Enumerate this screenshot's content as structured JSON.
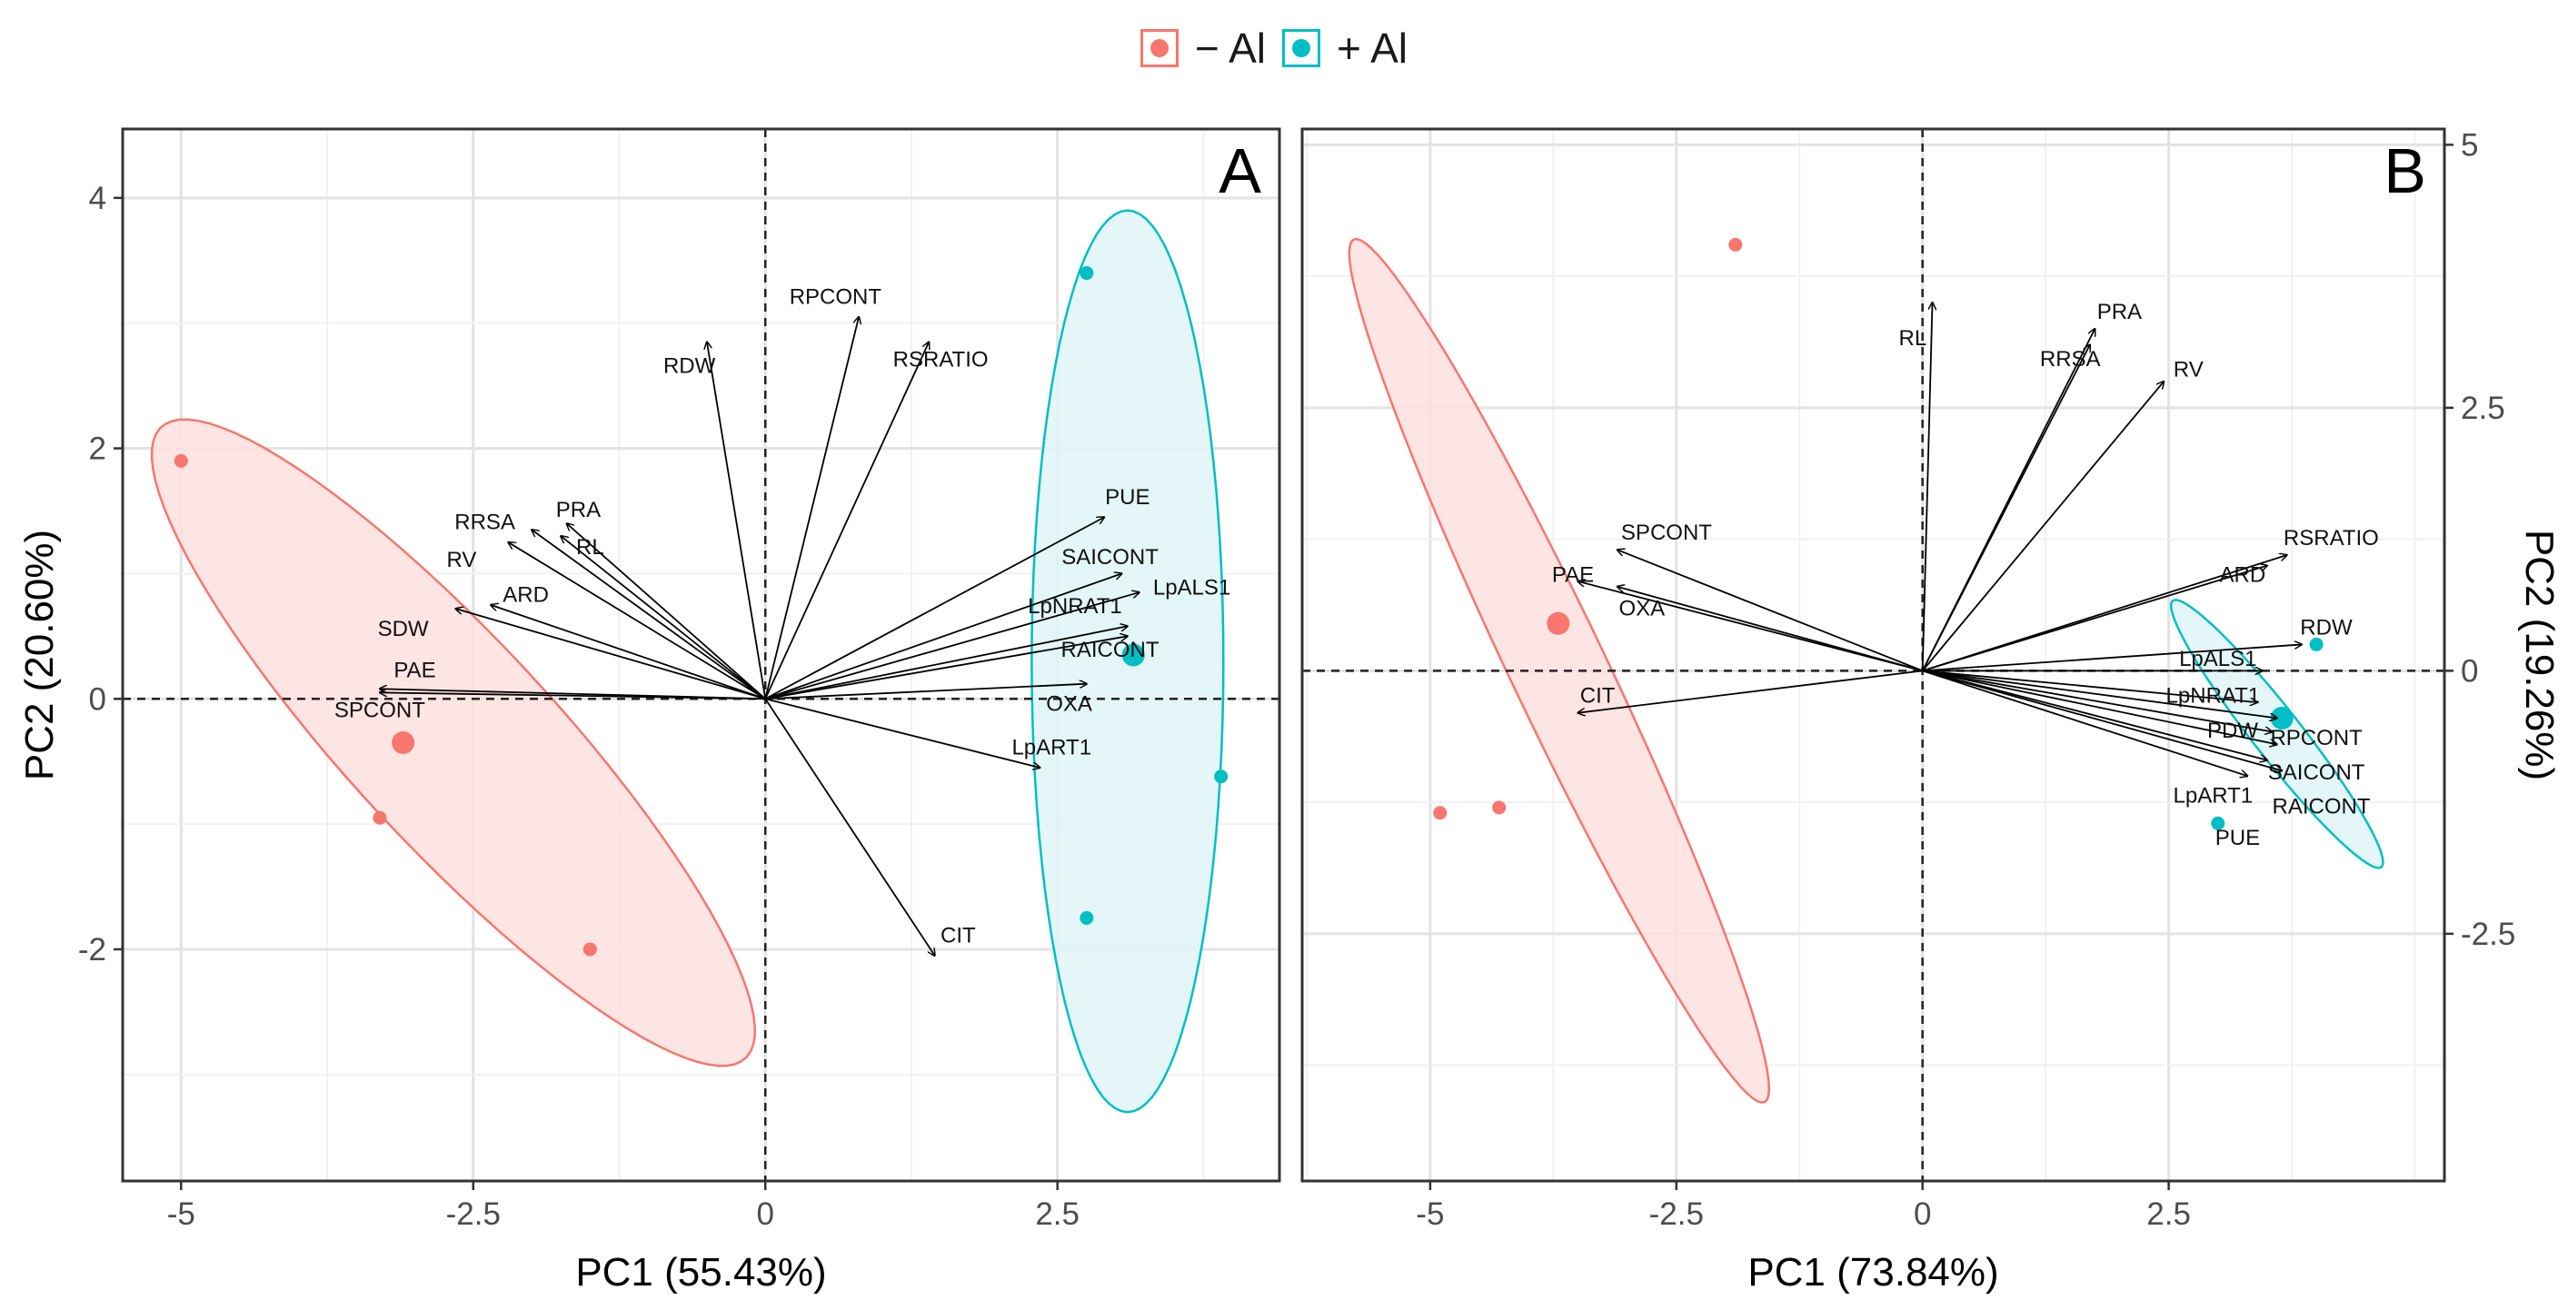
{
  "legend": {
    "items": [
      {
        "label": "− Al",
        "color": "#F8766D",
        "fill": "#FBE0DE"
      },
      {
        "label": "+ Al",
        "color": "#00BFC4",
        "fill": "#DFF5F6"
      }
    ]
  },
  "chart_data": [
    {
      "type": "scatter",
      "subtype": "pca-biplot",
      "panel_label": "A",
      "xlabel": "PC1 (55.43%)",
      "ylabel": "PC2 (20.60%)",
      "ylabel_side": "left",
      "xlim": [
        -5.5,
        4.4
      ],
      "ylim": [
        -3.85,
        4.55
      ],
      "xticks": [
        -5,
        -2.5,
        0,
        2.5
      ],
      "xtick_labels": [
        "-5",
        "-2.5",
        "0",
        "2.5"
      ],
      "yticks": [
        -2,
        0,
        2,
        4
      ],
      "ytick_labels": [
        "-2",
        "0",
        "2",
        "4"
      ],
      "groups": [
        {
          "name": "− Al",
          "points": [
            [
              -5.0,
              1.9
            ],
            [
              -3.3,
              -0.95
            ],
            [
              -1.5,
              -2.0
            ]
          ],
          "centroid": [
            -3.1,
            -0.35
          ],
          "ellipse": {
            "cx": -2.67,
            "cy": -0.35,
            "rx": 3.55,
            "ry": 0.85,
            "angle_deg": -45
          }
        },
        {
          "name": "+ Al",
          "points": [
            [
              2.75,
              3.4
            ],
            [
              3.9,
              -0.62
            ],
            [
              2.75,
              -1.75
            ]
          ],
          "centroid": [
            3.15,
            0.35
          ],
          "ellipse": {
            "cx": 3.1,
            "cy": 0.3,
            "rx": 0.82,
            "ry": 3.6,
            "angle_deg": 0
          }
        }
      ],
      "vectors": [
        {
          "name": "RDW",
          "end": [
            -0.5,
            2.85
          ],
          "label": [
            -0.65,
            2.65
          ]
        },
        {
          "name": "RPCONT",
          "end": [
            0.8,
            3.05
          ],
          "label": [
            0.6,
            3.2
          ]
        },
        {
          "name": "RSRATIO",
          "end": [
            1.4,
            2.85
          ],
          "label": [
            1.5,
            2.7
          ]
        },
        {
          "name": "PRA",
          "end": [
            -1.7,
            1.4
          ],
          "label": [
            -1.6,
            1.5
          ]
        },
        {
          "name": "RRSA",
          "end": [
            -2.0,
            1.35
          ],
          "label": [
            -2.4,
            1.4
          ]
        },
        {
          "name": "RL",
          "end": [
            -1.75,
            1.3
          ],
          "label": [
            -1.5,
            1.2
          ]
        },
        {
          "name": "RV",
          "end": [
            -2.2,
            1.25
          ],
          "label": [
            -2.6,
            1.1
          ]
        },
        {
          "name": "ARD",
          "end": [
            -2.35,
            0.75
          ],
          "label": [
            -2.05,
            0.82
          ]
        },
        {
          "name": "SDW",
          "end": [
            -2.65,
            0.72
          ],
          "label": [
            -3.1,
            0.55
          ]
        },
        {
          "name": "PAE",
          "end": [
            -3.3,
            0.08
          ],
          "label": [
            -3.0,
            0.22
          ]
        },
        {
          "name": "SPCONT",
          "end": [
            -3.3,
            0.05
          ],
          "label": [
            -3.3,
            -0.1
          ]
        },
        {
          "name": "PUE",
          "end": [
            2.9,
            1.45
          ],
          "label": [
            3.1,
            1.6
          ]
        },
        {
          "name": "SAICONT",
          "end": [
            3.05,
            1.0
          ],
          "label": [
            2.95,
            1.12
          ]
        },
        {
          "name": "LpALS1",
          "end": [
            3.2,
            0.85
          ],
          "label": [
            3.65,
            0.88
          ]
        },
        {
          "name": "LpNRAT1",
          "end": [
            3.1,
            0.58
          ],
          "label": [
            2.65,
            0.73
          ]
        },
        {
          "name": "RAICONT",
          "end": [
            3.1,
            0.5
          ],
          "label": [
            2.95,
            0.38
          ]
        },
        {
          "name": "OXA",
          "end": [
            2.75,
            0.12
          ],
          "label": [
            2.6,
            -0.05
          ]
        },
        {
          "name": "LpART1",
          "end": [
            2.35,
            -0.55
          ],
          "label": [
            2.45,
            -0.4
          ]
        },
        {
          "name": "CIT",
          "end": [
            1.45,
            -2.05
          ],
          "label": [
            1.65,
            -1.9
          ]
        }
      ]
    },
    {
      "type": "scatter",
      "subtype": "pca-biplot",
      "panel_label": "B",
      "xlabel": "PC1 (73.84%)",
      "ylabel": "PC2 (19.26%)",
      "ylabel_side": "right",
      "xlim": [
        -6.3,
        5.3
      ],
      "ylim": [
        -4.85,
        5.15
      ],
      "xticks": [
        -5,
        -2.5,
        0,
        2.5
      ],
      "xtick_labels": [
        "-5",
        "-2.5",
        "0",
        "2.5"
      ],
      "yticks": [
        -2.5,
        0,
        2.5,
        5
      ],
      "ytick_labels": [
        "-2.5",
        "0",
        "2.5",
        "5"
      ],
      "groups": [
        {
          "name": "− Al",
          "points": [
            [
              -1.9,
              4.05
            ],
            [
              -4.9,
              -1.35
            ],
            [
              -4.3,
              -1.3
            ]
          ],
          "centroid": [
            -3.7,
            0.45
          ],
          "ellipse": {
            "cx": -3.69,
            "cy": 0.0,
            "rx": 4.6,
            "ry": 0.48,
            "angle_deg": -63
          }
        },
        {
          "name": "+ Al",
          "points": [
            [
              4.0,
              0.25
            ],
            [
              3.0,
              -1.45
            ]
          ],
          "centroid": [
            3.65,
            -0.45
          ],
          "ellipse": {
            "cx": 3.6,
            "cy": -0.6,
            "rx": 1.65,
            "ry": 0.24,
            "angle_deg": -50
          }
        }
      ],
      "vectors": [
        {
          "name": "RL",
          "end": [
            0.1,
            3.5
          ],
          "label": [
            -0.1,
            3.15
          ]
        },
        {
          "name": "PRA",
          "end": [
            1.75,
            3.25
          ],
          "label": [
            2.0,
            3.4
          ]
        },
        {
          "name": "RRSA",
          "end": [
            1.7,
            3.1
          ],
          "label": [
            1.5,
            2.95
          ]
        },
        {
          "name": "RV",
          "end": [
            2.45,
            2.75
          ],
          "label": [
            2.7,
            2.85
          ]
        },
        {
          "name": "SPCONT",
          "end": [
            -3.1,
            1.15
          ],
          "label": [
            -2.6,
            1.3
          ]
        },
        {
          "name": "PAE",
          "end": [
            -3.5,
            0.85
          ],
          "label": [
            -3.55,
            0.9
          ]
        },
        {
          "name": "OXA",
          "end": [
            -3.1,
            0.8
          ],
          "label": [
            -2.85,
            0.58
          ]
        },
        {
          "name": "CIT",
          "end": [
            -3.5,
            -0.4
          ],
          "label": [
            -3.3,
            -0.25
          ]
        },
        {
          "name": "RSRATIO",
          "end": [
            3.7,
            1.1
          ],
          "label": [
            4.15,
            1.25
          ]
        },
        {
          "name": "ARD",
          "end": [
            3.5,
            1.0
          ],
          "label": [
            3.25,
            0.9
          ]
        },
        {
          "name": "RDW",
          "end": [
            3.85,
            0.25
          ],
          "label": [
            4.1,
            0.4
          ]
        },
        {
          "name": "LpALS1",
          "end": [
            3.45,
            0.0
          ],
          "label": [
            3.0,
            0.1
          ]
        },
        {
          "name": "LpNRAT1",
          "end": [
            3.4,
            -0.3
          ],
          "label": [
            2.95,
            -0.25
          ]
        },
        {
          "name": "RPCONT",
          "end": [
            3.6,
            -0.45
          ],
          "label": [
            4.0,
            -0.65
          ]
        },
        {
          "name": "PDW",
          "end": [
            3.55,
            -0.58
          ],
          "label": [
            3.15,
            -0.58
          ]
        },
        {
          "name": "SAICONT",
          "end": [
            3.6,
            -0.7
          ],
          "label": [
            4.0,
            -0.98
          ]
        },
        {
          "name": "LpART1",
          "end": [
            3.5,
            -0.85
          ],
          "label": [
            2.95,
            -1.2
          ]
        },
        {
          "name": "RAICONT",
          "end": [
            3.65,
            -0.95
          ],
          "label": [
            4.05,
            -1.3
          ]
        },
        {
          "name": "PUE",
          "end": [
            3.3,
            -1.0
          ],
          "label": [
            3.2,
            -1.6
          ]
        }
      ]
    }
  ]
}
